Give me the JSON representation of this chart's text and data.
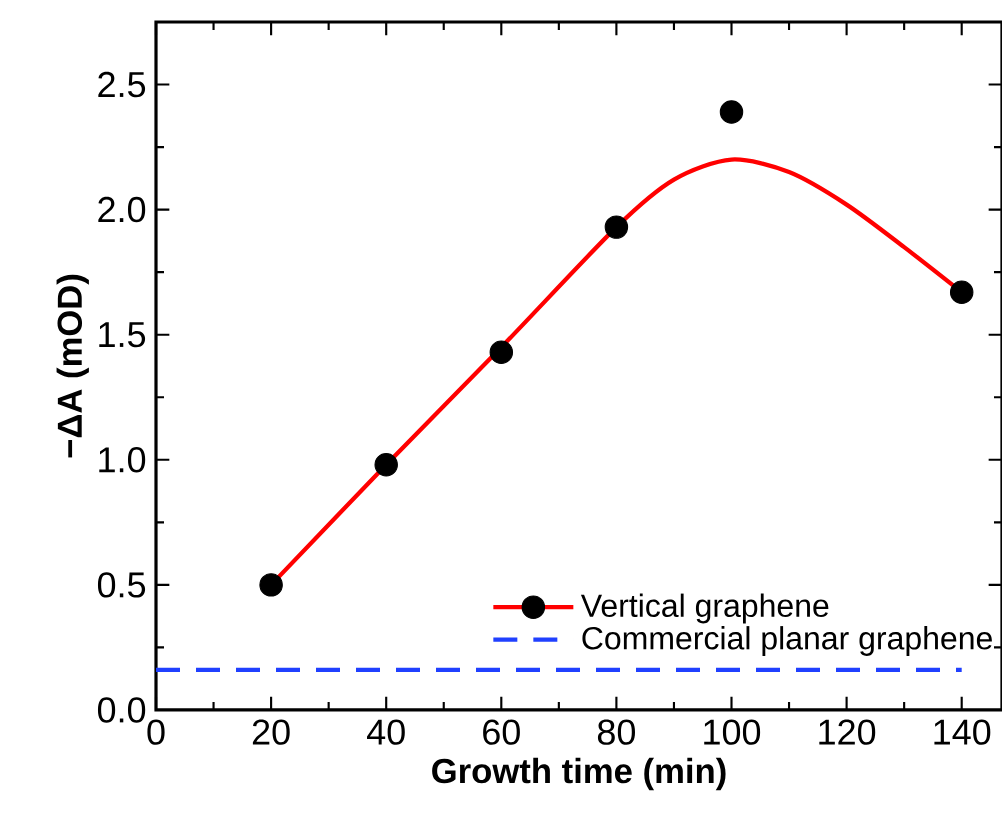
{
  "chart_data": {
    "type": "scatter",
    "xlabel": "Growth time (min)",
    "ylabel": "−ΔA (mOD)",
    "xlim": [
      0,
      147
    ],
    "ylim": [
      0,
      2.75
    ],
    "xticks": [
      0,
      20,
      40,
      60,
      80,
      100,
      120,
      140
    ],
    "yticks": [
      {
        "value": 0,
        "label": "0.0"
      },
      {
        "value": 0.5,
        "label": "0.5"
      },
      {
        "value": 1,
        "label": "1.0"
      },
      {
        "value": 1.5,
        "label": "1.5"
      },
      {
        "value": 2,
        "label": "2.0"
      },
      {
        "value": 2.5,
        "label": "2.5"
      }
    ],
    "legend": "bottom right",
    "grid": false,
    "series": [
      {
        "name": "Vertical graphene",
        "color": "#000000",
        "marker": "circle",
        "x": [
          20,
          40,
          60,
          80,
          100,
          140
        ],
        "values": [
          0.5,
          0.98,
          1.43,
          1.93,
          2.39,
          1.67
        ]
      },
      {
        "type": "line",
        "color": "#ff0000",
        "line_style": "solid",
        "x": [
          20,
          40,
          60,
          80,
          90,
          100,
          110,
          120,
          130,
          140
        ],
        "values": [
          0.5,
          0.98,
          1.45,
          1.93,
          2.12,
          2.2,
          2.15,
          2.02,
          1.85,
          1.67
        ]
      },
      {
        "name": "Commercial planar graphene",
        "type": "line",
        "color": "#2040ff",
        "line_style": "dashed",
        "x": [
          0,
          140
        ],
        "values": [
          0.16,
          0.16
        ]
      }
    ]
  }
}
